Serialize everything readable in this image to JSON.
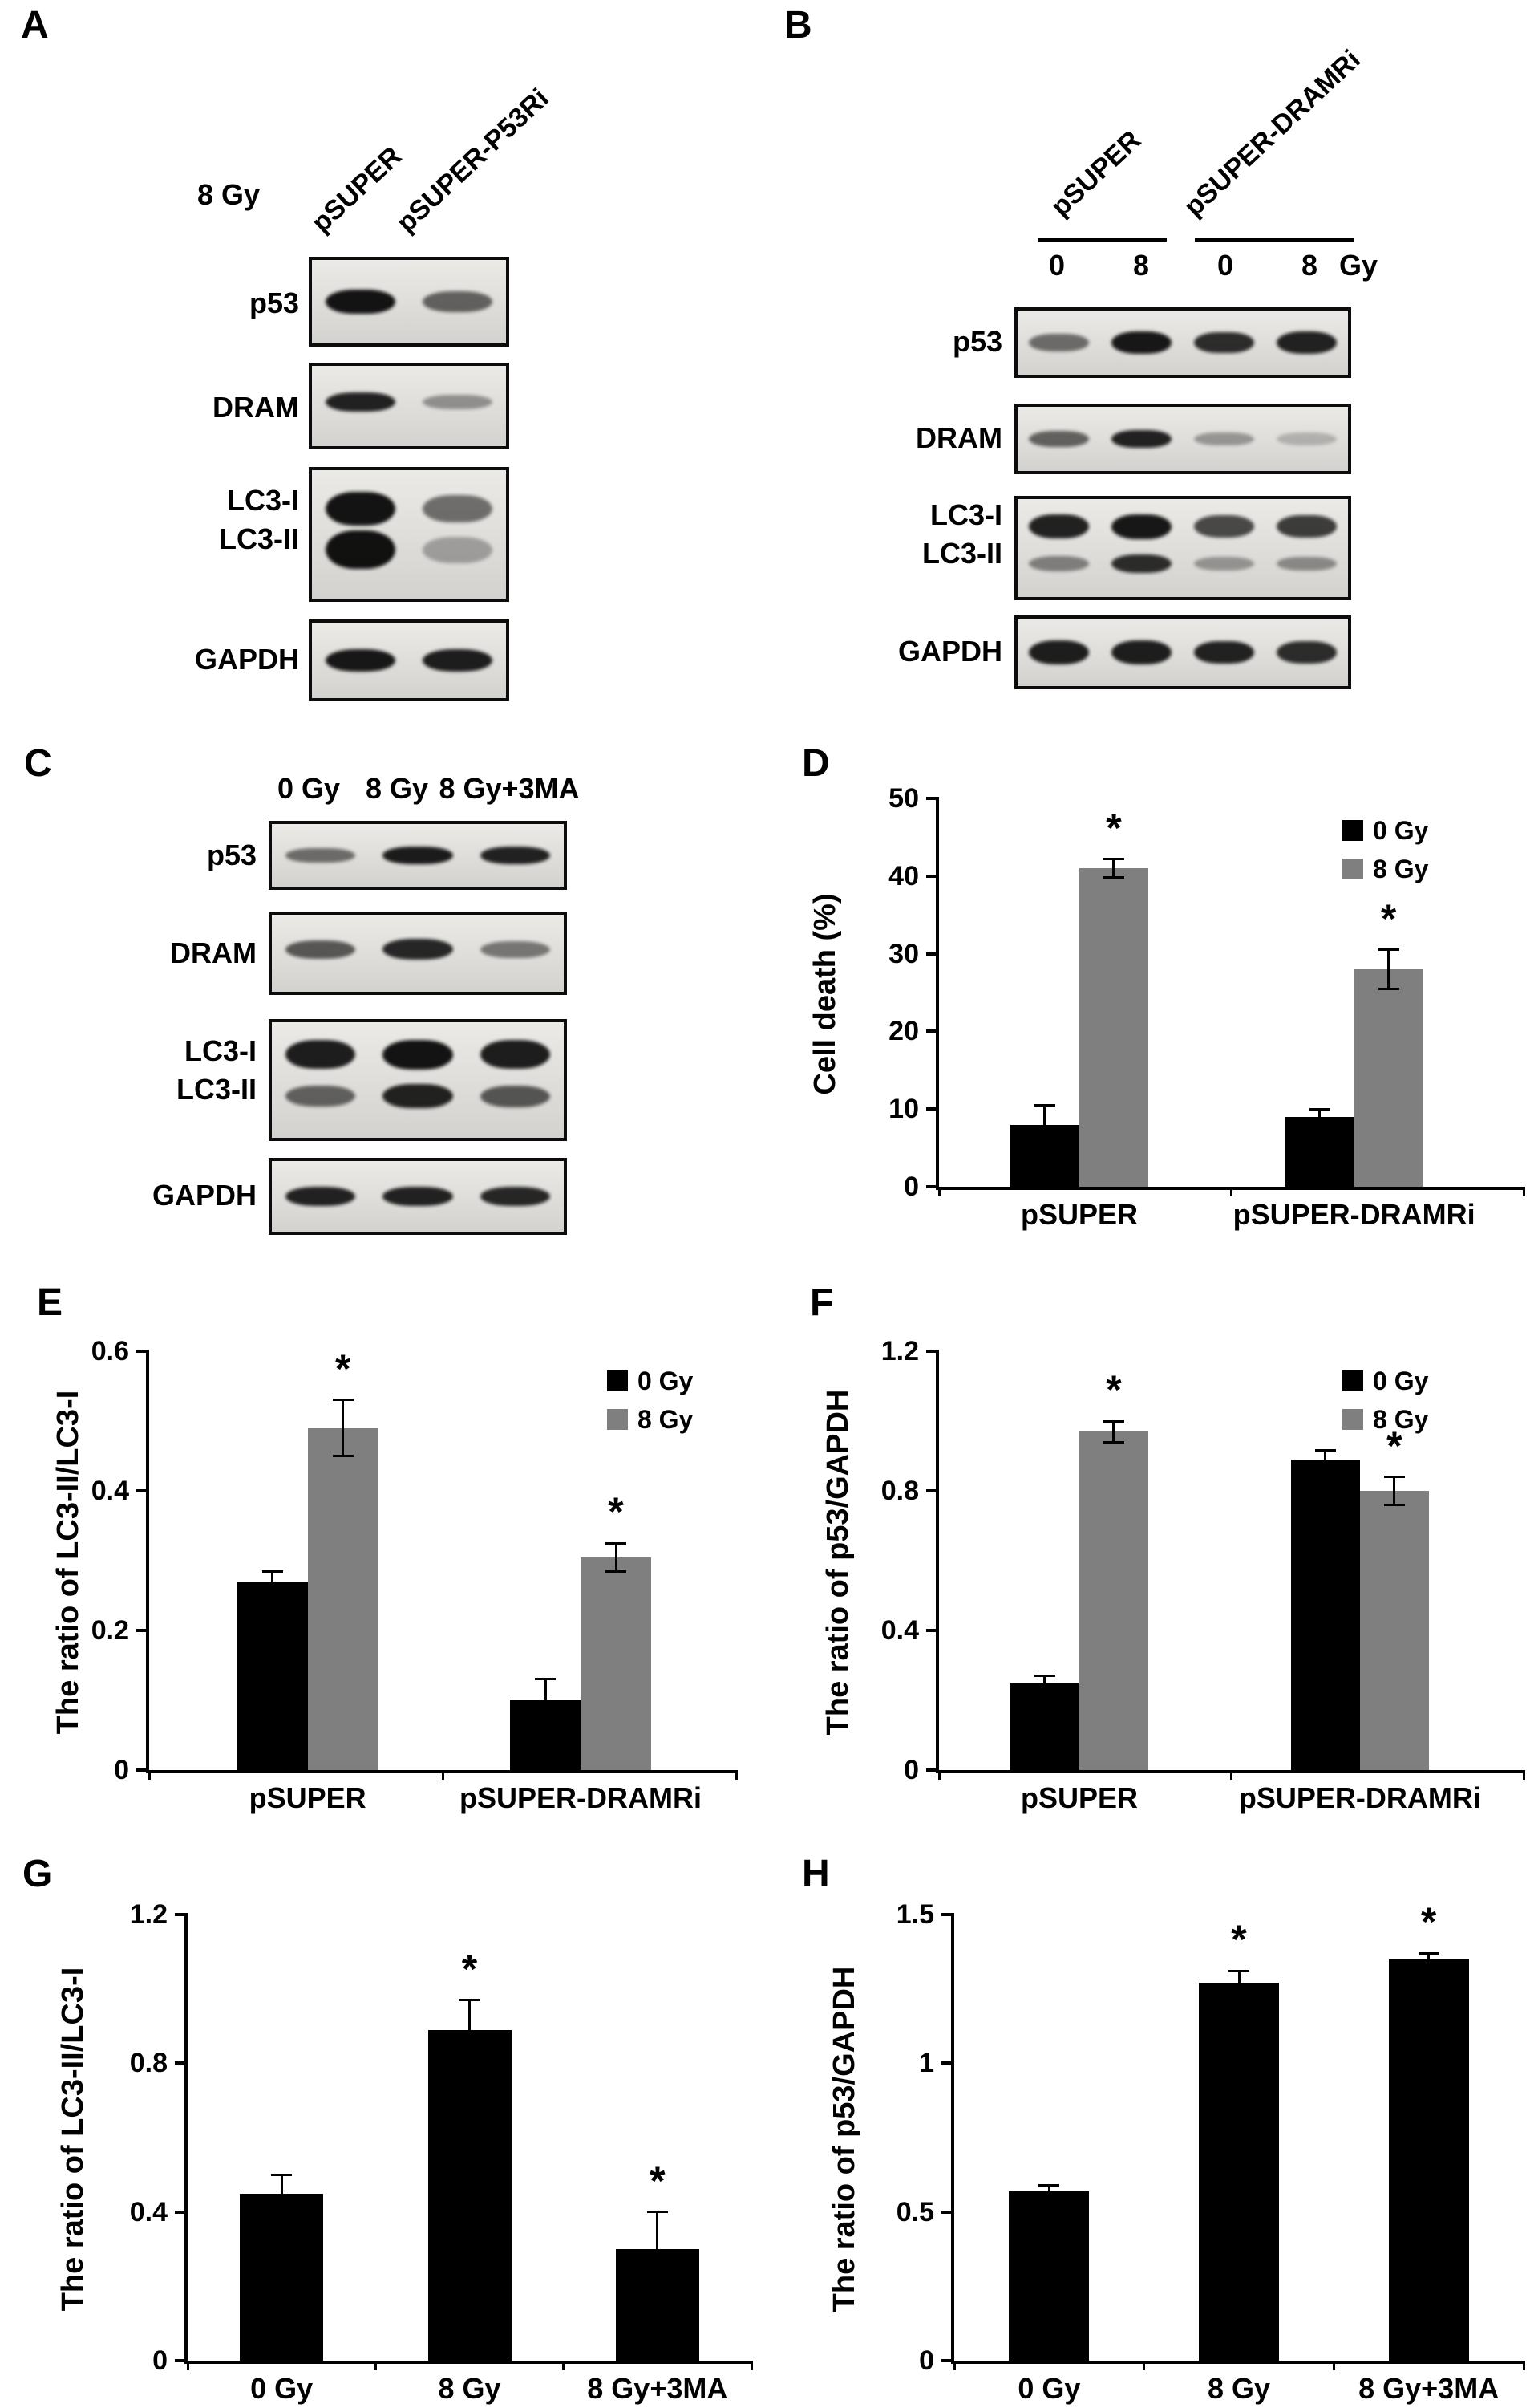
{
  "panels": {
    "A": {
      "letter": "A",
      "dose_label": "8 Gy",
      "lane_labels": [
        "pSUPER",
        "pSUPER-P53Ri"
      ]
    },
    "B": {
      "letter": "B",
      "group_labels": [
        "pSUPER",
        "pSUPER-DRAMRi"
      ],
      "dose_labels": [
        "0",
        "8",
        "0",
        "8"
      ],
      "dose_unit": "Gy"
    },
    "C": {
      "letter": "C",
      "lane_labels": [
        "0 Gy",
        "8 Gy",
        "8 Gy+3MA"
      ]
    },
    "D": {
      "letter": "D"
    },
    "E": {
      "letter": "E"
    },
    "F": {
      "letter": "F"
    },
    "G": {
      "letter": "G"
    },
    "H": {
      "letter": "H"
    }
  },
  "blots": {
    "A": {
      "rows": [
        {
          "label": "p53",
          "bandRows": [
            {
              "y": 0.5,
              "h": 0.3,
              "lanes": [
                0.97,
                0.6
              ]
            }
          ]
        },
        {
          "label": "DRAM",
          "bandRows": [
            {
              "y": 0.45,
              "h": 0.26,
              "lanes": [
                0.9,
                0.38
              ]
            }
          ]
        },
        {
          "label": "LC3-I",
          "label2": "LC3-II",
          "bandRows": [
            {
              "y": 0.3,
              "h": 0.27,
              "lanes": [
                0.97,
                0.55
              ]
            },
            {
              "y": 0.62,
              "h": 0.3,
              "lanes": [
                0.98,
                0.3
              ]
            }
          ]
        },
        {
          "label": "GAPDH",
          "bandRows": [
            {
              "y": 0.5,
              "h": 0.3,
              "lanes": [
                0.95,
                0.92
              ]
            }
          ]
        }
      ]
    },
    "B": {
      "rows": [
        {
          "label": "p53",
          "bandRows": [
            {
              "y": 0.5,
              "h": 0.36,
              "lanes": [
                0.55,
                0.95,
                0.85,
                0.9
              ]
            }
          ]
        },
        {
          "label": "DRAM",
          "bandRows": [
            {
              "y": 0.5,
              "h": 0.3,
              "lanes": [
                0.6,
                0.9,
                0.35,
                0.22
              ]
            }
          ]
        },
        {
          "label": "LC3-I",
          "label2": "LC3-II",
          "bandRows": [
            {
              "y": 0.28,
              "h": 0.26,
              "lanes": [
                0.9,
                0.95,
                0.72,
                0.78
              ]
            },
            {
              "y": 0.66,
              "h": 0.2,
              "lanes": [
                0.45,
                0.85,
                0.35,
                0.4
              ]
            }
          ]
        },
        {
          "label": "GAPDH",
          "bandRows": [
            {
              "y": 0.5,
              "h": 0.36,
              "lanes": [
                0.92,
                0.92,
                0.9,
                0.85
              ]
            }
          ]
        }
      ]
    },
    "C": {
      "rows": [
        {
          "label": "p53",
          "bandRows": [
            {
              "y": 0.5,
              "h": 0.3,
              "lanes": [
                0.55,
                0.93,
                0.9
              ]
            }
          ]
        },
        {
          "label": "DRAM",
          "bandRows": [
            {
              "y": 0.45,
              "h": 0.28,
              "lanes": [
                0.65,
                0.88,
                0.5
              ]
            }
          ]
        },
        {
          "label": "LC3-I",
          "label2": "LC3-II",
          "bandRows": [
            {
              "y": 0.28,
              "h": 0.26,
              "lanes": [
                0.92,
                0.97,
                0.92
              ]
            },
            {
              "y": 0.64,
              "h": 0.22,
              "lanes": [
                0.6,
                0.9,
                0.65
              ]
            }
          ]
        },
        {
          "label": "GAPDH",
          "bandRows": [
            {
              "y": 0.5,
              "h": 0.28,
              "lanes": [
                0.9,
                0.9,
                0.88
              ]
            }
          ]
        }
      ]
    }
  },
  "chart_data": [
    {
      "panel": "D",
      "type": "bar",
      "title": "",
      "xlabel": "",
      "ylabel": "Cell death (%)",
      "ylim": [
        0,
        50
      ],
      "yticks": [
        "0",
        "10",
        "20",
        "30",
        "40",
        "50"
      ],
      "grid": false,
      "legend": true,
      "legend_position": "top-right",
      "sig_symbol": "*",
      "categories": [
        "pSUPER",
        "pSUPER-DRAMRi"
      ],
      "series": [
        {
          "name": "0 Gy",
          "color": "#000000",
          "values": [
            8,
            9
          ],
          "errors": [
            2.5,
            1.0
          ],
          "sig": [
            false,
            false
          ]
        },
        {
          "name": "8 Gy",
          "color": "#7f7f7f",
          "values": [
            41,
            28
          ],
          "errors": [
            1.2,
            2.5
          ],
          "sig": [
            true,
            true
          ]
        }
      ]
    },
    {
      "panel": "E",
      "type": "bar",
      "title": "",
      "xlabel": "",
      "ylabel": "The ratio of LC3-II/LC3-I",
      "ylim": [
        0,
        0.6
      ],
      "yticks": [
        "0",
        "0.2",
        "0.4",
        "0.6"
      ],
      "grid": false,
      "legend": true,
      "legend_position": "top-right",
      "sig_symbol": "*",
      "categories": [
        "pSUPER",
        "pSUPER-DRAMRi"
      ],
      "series": [
        {
          "name": "0 Gy",
          "color": "#000000",
          "values": [
            0.27,
            0.1
          ],
          "errors": [
            0.015,
            0.03
          ],
          "sig": [
            false,
            false
          ]
        },
        {
          "name": "8 Gy",
          "color": "#7f7f7f",
          "values": [
            0.49,
            0.305
          ],
          "errors": [
            0.04,
            0.02
          ],
          "sig": [
            true,
            true
          ]
        }
      ]
    },
    {
      "panel": "F",
      "type": "bar",
      "title": "",
      "xlabel": "",
      "ylabel": "The ratio of p53/GAPDH",
      "ylim": [
        0,
        1.2
      ],
      "yticks": [
        "0",
        "0.4",
        "0.8",
        "1.2"
      ],
      "grid": false,
      "legend": true,
      "legend_position": "top-right",
      "sig_symbol": "*",
      "categories": [
        "pSUPER",
        "pSUPER-DRAMRi"
      ],
      "series": [
        {
          "name": "0 Gy",
          "color": "#000000",
          "values": [
            0.25,
            0.89
          ],
          "errors": [
            0.02,
            0.025
          ],
          "sig": [
            false,
            false
          ]
        },
        {
          "name": "8 Gy",
          "color": "#7f7f7f",
          "values": [
            0.97,
            0.8
          ],
          "errors": [
            0.03,
            0.04
          ],
          "sig": [
            true,
            true
          ]
        }
      ]
    },
    {
      "panel": "G",
      "type": "bar",
      "title": "",
      "xlabel": "",
      "ylabel": "The ratio of LC3-II/LC3-I",
      "ylim": [
        0,
        1.2
      ],
      "yticks": [
        "0",
        "0.4",
        "0.8",
        "1.2"
      ],
      "grid": false,
      "legend": false,
      "sig_symbol": "*",
      "categories": [
        "0 Gy",
        "8 Gy",
        "8 Gy+3MA"
      ],
      "series": [
        {
          "name": "",
          "color": "#000000",
          "values": [
            0.45,
            0.89,
            0.3
          ],
          "errors": [
            0.05,
            0.08,
            0.1
          ],
          "sig": [
            false,
            true,
            true
          ]
        }
      ]
    },
    {
      "panel": "H",
      "type": "bar",
      "title": "",
      "xlabel": "",
      "ylabel": "The ratio of p53/GAPDH",
      "ylim": [
        0,
        1.5
      ],
      "yticks": [
        "0",
        "0.5",
        "1",
        "1.5"
      ],
      "grid": false,
      "legend": false,
      "sig_symbol": "*",
      "categories": [
        "0 Gy",
        "8 Gy",
        "8 Gy+3MA"
      ],
      "series": [
        {
          "name": "",
          "color": "#000000",
          "values": [
            0.57,
            1.27,
            1.35
          ],
          "errors": [
            0.02,
            0.04,
            0.02
          ],
          "sig": [
            false,
            true,
            true
          ]
        }
      ]
    }
  ]
}
